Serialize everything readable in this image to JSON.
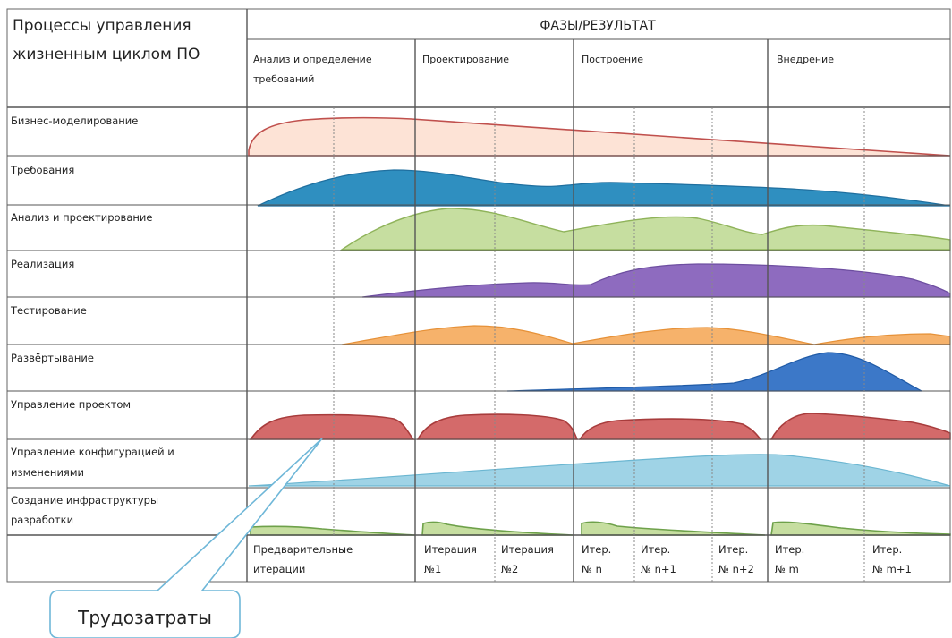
{
  "header": {
    "process_title_line1": "Процессы управления",
    "process_title_line2": "жизненным циклом ПО",
    "phases_title": "ФАЗЫ/РЕЗУЛЬТАТ"
  },
  "phases": [
    {
      "label_line1": "Анализ и определение",
      "label_line2": "требований"
    },
    {
      "label_line1": "Проектирование",
      "label_line2": ""
    },
    {
      "label_line1": "Построение",
      "label_line2": ""
    },
    {
      "label_line1": "Внедрение",
      "label_line2": ""
    }
  ],
  "rows": [
    {
      "label_line1": "Бизнес-моделирование",
      "label_line2": "",
      "color": "#fde3d6",
      "stroke": "#c0504d"
    },
    {
      "label_line1": "Требования",
      "label_line2": "",
      "color": "#2f8fc0",
      "stroke": "#1f6f9f"
    },
    {
      "label_line1": "Анализ и проектирование",
      "label_line2": "",
      "color": "#c6dea0",
      "stroke": "#8fb35a"
    },
    {
      "label_line1": "Реализация",
      "label_line2": "",
      "color": "#8e6bbf",
      "stroke": "#6d4ea0"
    },
    {
      "label_line1": "Тестирование",
      "label_line2": "",
      "color": "#f6b26b",
      "stroke": "#e69138"
    },
    {
      "label_line1": "Развёртывание",
      "label_line2": "",
      "color": "#3c78c8",
      "stroke": "#1f5aa6"
    },
    {
      "label_line1": "Управление проектом",
      "label_line2": "",
      "color": "#d46a6a",
      "stroke": "#a83c3c"
    },
    {
      "label_line1": "Управление конфигурацией и",
      "label_line2": "изменениями",
      "color": "#9fd3e6",
      "stroke": "#6bb6d1"
    },
    {
      "label_line1": "Создание инфраструктуры",
      "label_line2": "разработки",
      "color": "#c6dea0",
      "stroke": "#6ea14a"
    }
  ],
  "iterations": [
    {
      "line1": "Предварительные",
      "line2": "итерации"
    },
    {
      "line1": "Итерация",
      "line2": "№1"
    },
    {
      "line1": "Итерация",
      "line2": "№2"
    },
    {
      "line1": "Итер.",
      "line2": "№ n"
    },
    {
      "line1": "Итер.",
      "line2": "№ n+1"
    },
    {
      "line1": "Итер.",
      "line2": "№ n+2"
    },
    {
      "line1": "Итер.",
      "line2": "№ m"
    },
    {
      "line1": "Итер.",
      "line2": "№ m+1"
    }
  ],
  "callout": {
    "label": "Трудозатраты"
  }
}
